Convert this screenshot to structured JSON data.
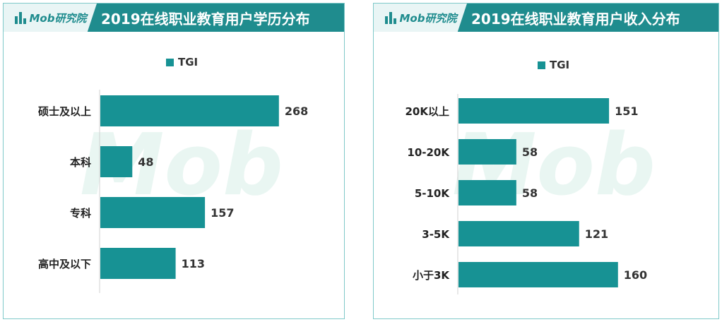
{
  "brand": "Mob研究院",
  "chart_data": [
    {
      "type": "bar",
      "orientation": "horizontal",
      "title": "2019在线职业教育用户学历分布",
      "legend": "TGI",
      "legend_position": "top",
      "categories": [
        "硕士及以上",
        "本科",
        "专科",
        "高中及以下"
      ],
      "series": [
        {
          "name": "TGI",
          "values": [
            268,
            48,
            157,
            113
          ]
        }
      ],
      "xlim": [
        0,
        300
      ],
      "grid": false,
      "bar_color": "#179294"
    },
    {
      "type": "bar",
      "orientation": "horizontal",
      "title": "2019在线职业教育用户收入分布",
      "legend": "TGI",
      "legend_position": "top",
      "categories": [
        "20K以上",
        "10-20K",
        "5-10K",
        "3-5K",
        "小于3K"
      ],
      "series": [
        {
          "name": "TGI",
          "values": [
            151,
            58,
            58,
            121,
            160
          ]
        }
      ],
      "xlim": [
        0,
        180
      ],
      "grid": false,
      "bar_color": "#179294"
    }
  ]
}
